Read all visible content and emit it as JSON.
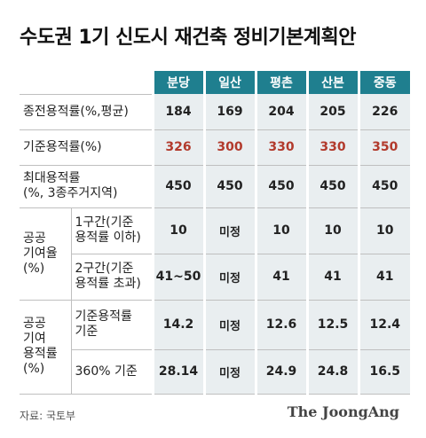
{
  "title": "수도권 1기 신도시 재건축 정비기본계획안",
  "columns": [
    "분당",
    "일산",
    "평촌",
    "산본",
    "중동"
  ],
  "rows": {
    "current_far": {
      "label": "종전용적률(%,평균)",
      "values": [
        "184",
        "169",
        "204",
        "205",
        "226"
      ]
    },
    "base_far": {
      "label": "기준용적률(%)",
      "values": [
        "326",
        "300",
        "330",
        "330",
        "350"
      ]
    },
    "max_far": {
      "label_line1": "최대용적률",
      "label_line2": "(%, 3종주거지역)",
      "values": [
        "450",
        "450",
        "450",
        "450",
        "450"
      ]
    },
    "public_rate": {
      "group_line1": "공공",
      "group_line2": "기여율",
      "group_line3": "(%)",
      "sub1": {
        "label_line1": "1구간(기준",
        "label_line2": "용적률 이하)",
        "values": [
          "10",
          "미정",
          "10",
          "10",
          "10"
        ]
      },
      "sub2": {
        "label_line1": "2구간(기준",
        "label_line2": "용적률 초과)",
        "values": [
          "41~50",
          "미정",
          "41",
          "41",
          "41"
        ]
      }
    },
    "public_far": {
      "group_line1": "공공",
      "group_line2": "기여",
      "group_line3": "용적률",
      "group_line4": "(%)",
      "sub1": {
        "label_line1": "기준용적률",
        "label_line2": "기준",
        "values": [
          "14.2",
          "미정",
          "12.6",
          "12.5",
          "12.4"
        ]
      },
      "sub2": {
        "label": "360% 기준",
        "values": [
          "28.14",
          "미정",
          "24.9",
          "24.8",
          "16.5"
        ]
      }
    }
  },
  "source": "자료: 국토부",
  "logo": "The JoongAng"
}
